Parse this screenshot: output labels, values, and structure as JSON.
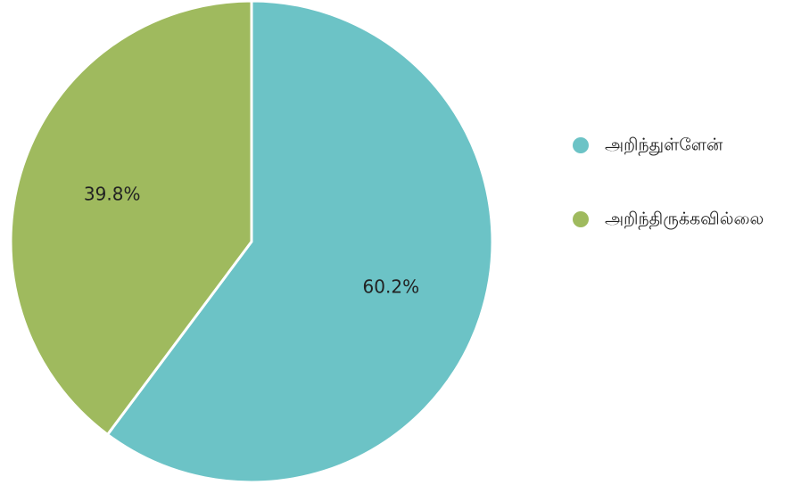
{
  "chart_data": {
    "type": "pie",
    "title": "",
    "slices": [
      {
        "label": "அறிந்துள்ளேன்",
        "value": 60.2,
        "display": "60.2%",
        "color": "#6cc3c6"
      },
      {
        "label": "அறிந்திருக்கவில்லை",
        "value": 39.8,
        "display": "39.8%",
        "color": "#9fba5e"
      }
    ],
    "start_angle": "12 o'clock",
    "direction": "clockwise",
    "legend_position": "right"
  }
}
